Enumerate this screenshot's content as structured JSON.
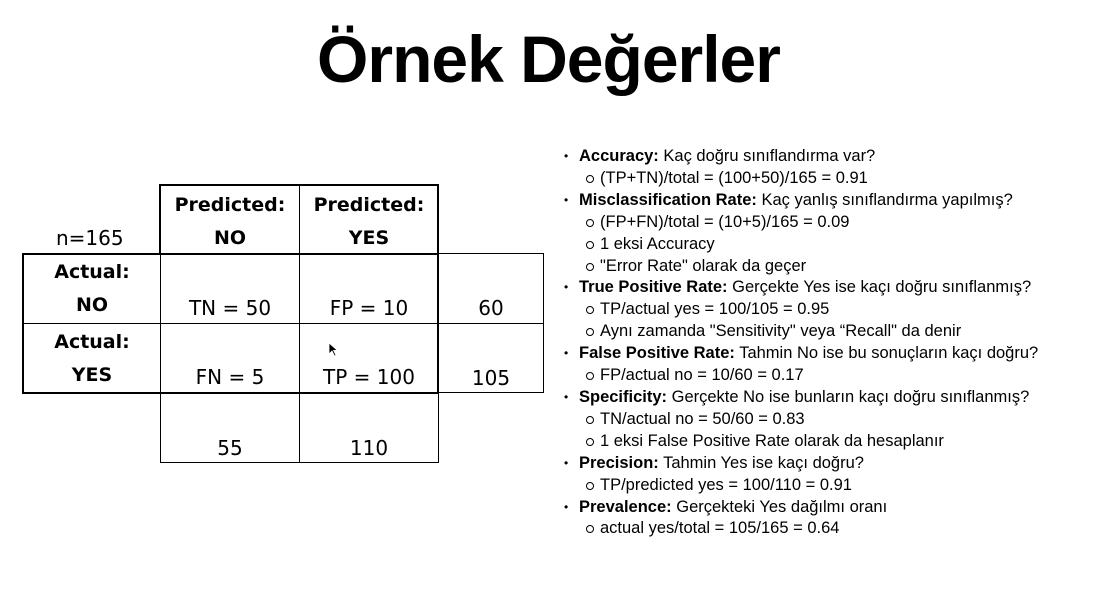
{
  "title": "Örnek Değerler",
  "matrix": {
    "n_label": "n=165",
    "col_headers": [
      {
        "line1": "Predicted:",
        "line2": "NO"
      },
      {
        "line1": "Predicted:",
        "line2": "YES"
      }
    ],
    "row_headers": [
      {
        "line1": "Actual:",
        "line2": "NO"
      },
      {
        "line1": "Actual:",
        "line2": "YES"
      }
    ],
    "cells": {
      "tn": "TN = 50",
      "fp": "FP = 10",
      "fn": "FN = 5",
      "tp": "TP = 100"
    },
    "row_totals": [
      "60",
      "105"
    ],
    "col_totals": [
      "55",
      "110"
    ]
  },
  "notes": [
    {
      "term": "Accuracy:",
      "desc": " Kaç doğru sınıflandırma var?",
      "subs": [
        "(TP+TN)/total = (100+50)/165 = 0.91"
      ]
    },
    {
      "term": "Misclassification Rate:",
      "desc": " Kaç yanlış sınıflandırma yapılmış?",
      "subs": [
        "(FP+FN)/total = (10+5)/165 = 0.09",
        "1 eksi Accuracy",
        "\"Error Rate\" olarak da geçer"
      ]
    },
    {
      "term": "True Positive Rate:",
      "desc": " Gerçekte Yes ise kaçı doğru sınıflanmış?",
      "subs": [
        "TP/actual yes = 100/105 = 0.95",
        "Aynı zamanda  \"Sensitivity\" veya “Recall\" da denir"
      ]
    },
    {
      "term": "False Positive Rate:",
      "desc": " Tahmin No ise bu sonuçların kaçı doğru?",
      "subs": [
        "FP/actual no = 10/60 = 0.17"
      ]
    },
    {
      "term": "Specificity:",
      "desc": " Gerçekte No ise bunların kaçı doğru sınıflanmış?",
      "subs": [
        "TN/actual no = 50/60 = 0.83",
        "1 eksi False Positive Rate olarak da hesaplanır"
      ]
    },
    {
      "term": "Precision:",
      "desc": " Tahmin Yes ise kaçı doğru?",
      "subs": [
        "TP/predicted yes = 100/110 = 0.91"
      ]
    },
    {
      "term": "Prevalence:",
      "desc": " Gerçekteki Yes dağılmı oranı",
      "subs": [
        "actual yes/total = 105/165 = 0.64"
      ]
    }
  ]
}
